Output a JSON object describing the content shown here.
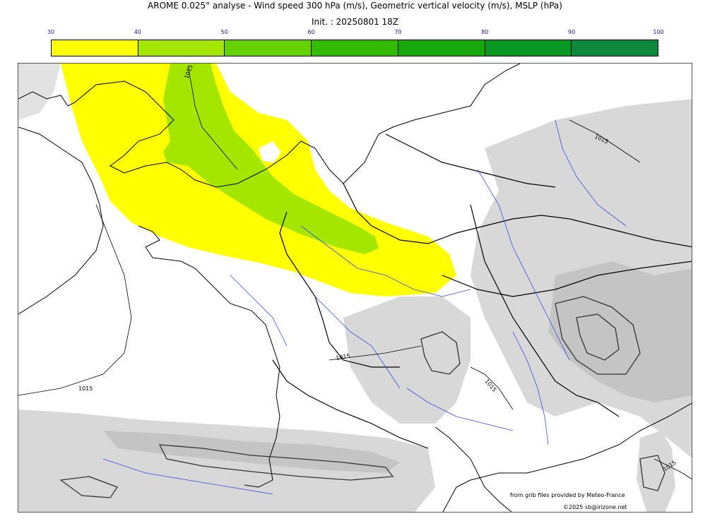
{
  "header": {
    "title": "AROME 0.025° analyse - Wind speed 300 hPa (m/s), Geometric vertical velocity (m/s), MSLP (hPa)",
    "init": "Init. : 20250801 18Z"
  },
  "colorbar": {
    "ticks": [
      "30",
      "40",
      "50",
      "60",
      "70",
      "80",
      "90",
      "100"
    ],
    "colors": [
      "#ffff00",
      "#a5e600",
      "#66d100",
      "#33bb00",
      "#19a80b",
      "#0a9a24",
      "#0b8a3c",
      "#0a7a4a"
    ]
  },
  "map": {
    "isobar_labels": [
      "1015",
      "1015",
      "1015",
      "1015",
      "1015",
      "1015"
    ],
    "colors": {
      "wind_40": "#ffff00",
      "wind_50": "#a5e600",
      "terrain": "#d8d8d8",
      "terrain_dark": "#c4c4c4",
      "rivers": "#3a4de0",
      "coast": "#000000"
    }
  },
  "credits": {
    "source": "from grib files provided by Meteo-France",
    "copyright": "©2025 sb@irizone.net"
  }
}
